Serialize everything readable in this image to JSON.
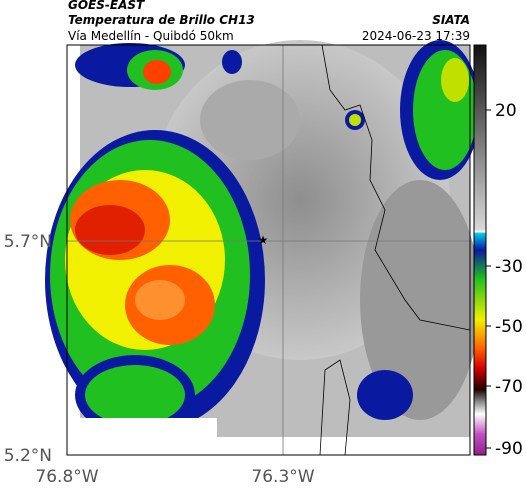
{
  "header": {
    "source": "GOES-EAST",
    "title": "Temperatura de Brillo CH13",
    "subtitle": "Vía Medellín - Quibdó 50km",
    "credit": "SIATA",
    "timestamp": "2024-06-23 17:39"
  },
  "axes": {
    "latitude": [
      "5.7°N",
      "5.2°N"
    ],
    "longitude": [
      "76.8°W",
      "76.3°W"
    ]
  },
  "colorbar": {
    "ticks": [
      20,
      -30,
      -50,
      -70,
      -90
    ]
  }
}
